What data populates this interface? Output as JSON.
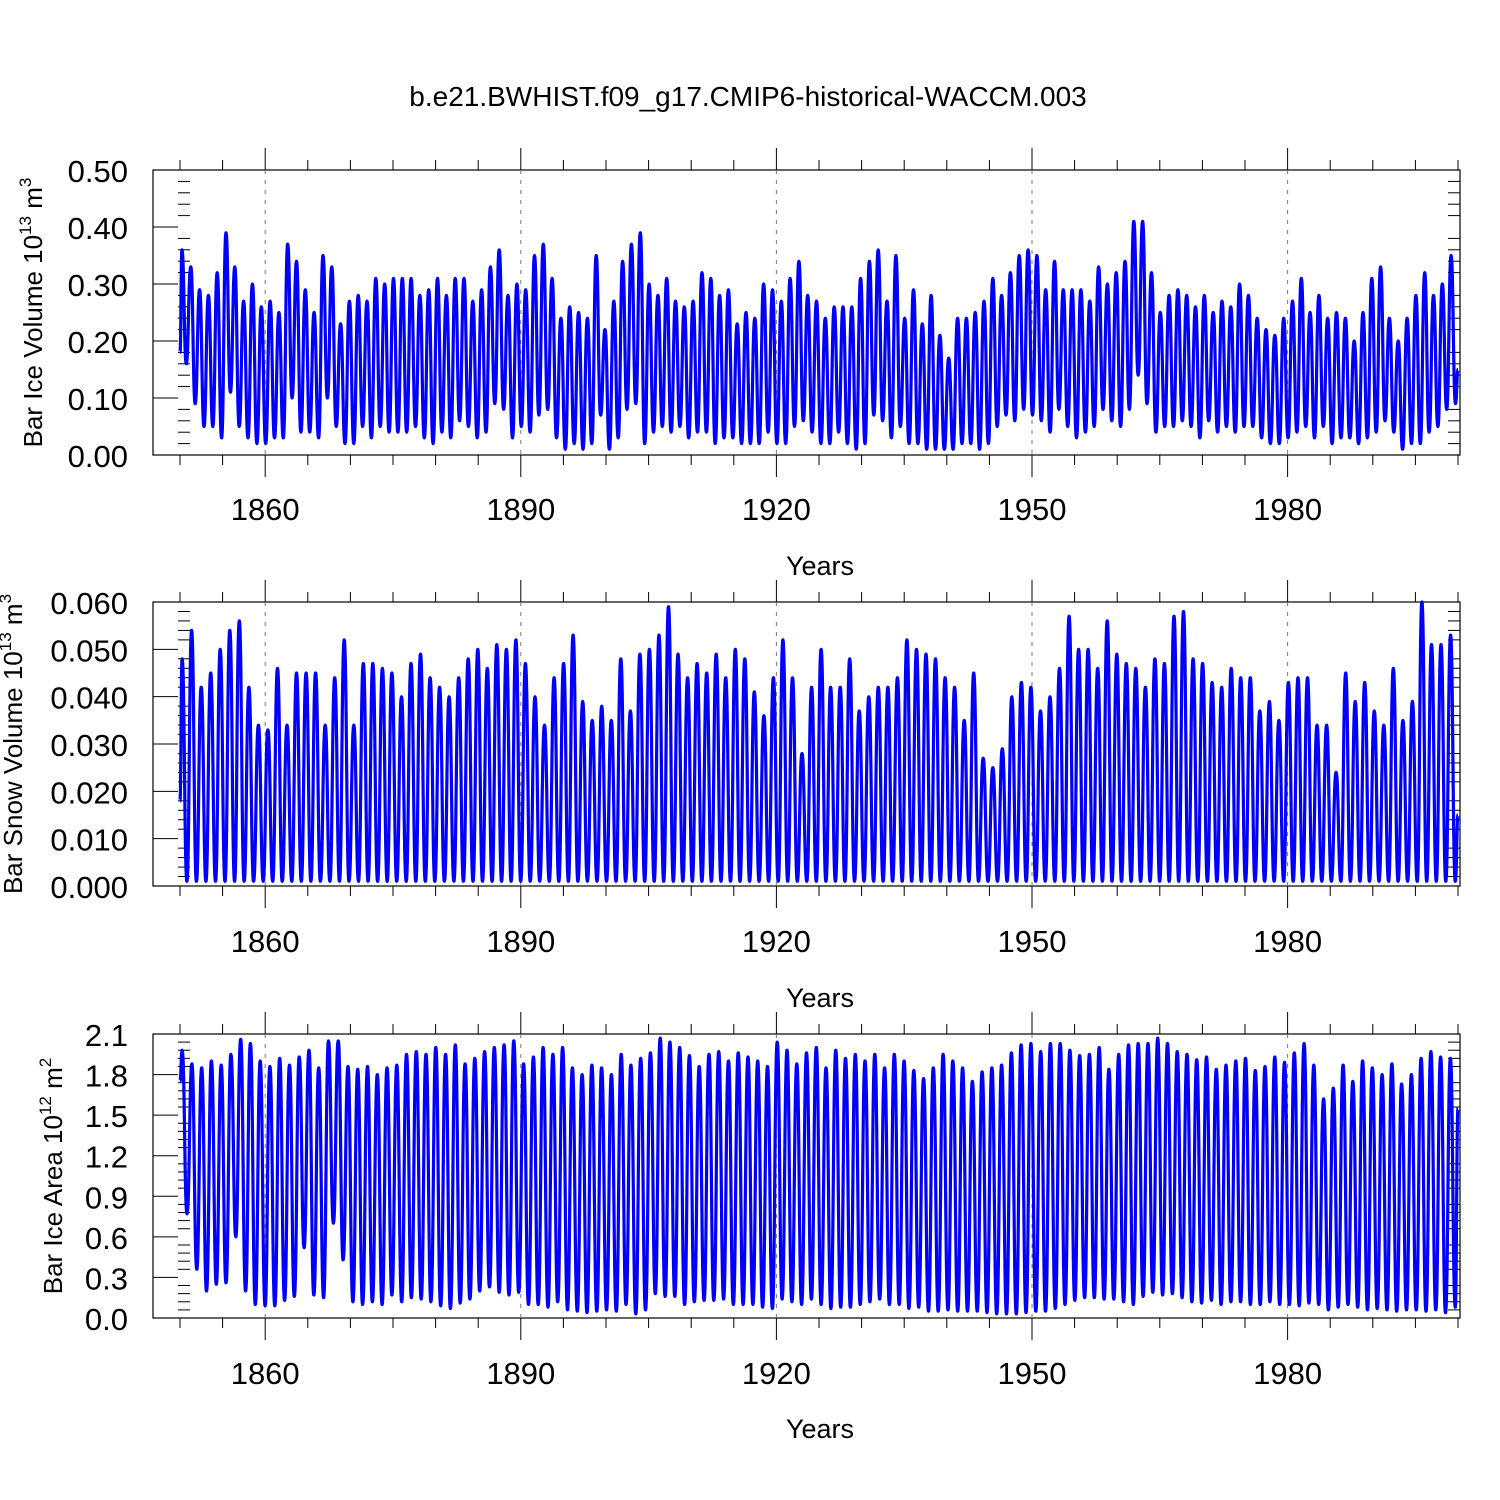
{
  "title": "b.e21.BWHIST.f09_g17.CMIP6-historical-WACCM.003",
  "line_color": "#0000ff",
  "chart_data": [
    {
      "type": "line",
      "ylabel_main": "Bar Ice Volume 10",
      "ylabel_exp": "13",
      "ylabel_unit": " m",
      "ylabel_unit_exp": "3",
      "xlabel": "Years",
      "xlim": [
        1850,
        2000
      ],
      "ylim": [
        0,
        0.5
      ],
      "xticks": [
        1860,
        1890,
        1920,
        1950,
        1980
      ],
      "yticks": [
        0.0,
        0.1,
        0.2,
        0.3,
        0.4,
        0.5
      ],
      "ytick_labels": [
        "0.00",
        "0.10",
        "0.20",
        "0.30",
        "0.40",
        "0.50"
      ],
      "grid": "vertical dashed at major x ticks",
      "series": [
        {
          "peaks": [
            0.36,
            0.33,
            0.29,
            0.28,
            0.32,
            0.39,
            0.33,
            0.27,
            0.3,
            0.26,
            0.27,
            0.25,
            0.37,
            0.34,
            0.29,
            0.25,
            0.35,
            0.33,
            0.23,
            0.27,
            0.28,
            0.27,
            0.31,
            0.3,
            0.31,
            0.31,
            0.31,
            0.28,
            0.29,
            0.31,
            0.28,
            0.31,
            0.31,
            0.27,
            0.29,
            0.33,
            0.36,
            0.28,
            0.3,
            0.29,
            0.35,
            0.37,
            0.31,
            0.24,
            0.26,
            0.25,
            0.24,
            0.35,
            0.22,
            0.27,
            0.34,
            0.37,
            0.39,
            0.3,
            0.28,
            0.31,
            0.27,
            0.26,
            0.27,
            0.32,
            0.31,
            0.28,
            0.29,
            0.23,
            0.25,
            0.24,
            0.3,
            0.29,
            0.27,
            0.31,
            0.34,
            0.28,
            0.27,
            0.24,
            0.26,
            0.26,
            0.26,
            0.31,
            0.34,
            0.36,
            0.27,
            0.35,
            0.24,
            0.29,
            0.23,
            0.28,
            0.21,
            0.17,
            0.24,
            0.24,
            0.25,
            0.27,
            0.31,
            0.28,
            0.32,
            0.35,
            0.36,
            0.35,
            0.29,
            0.34,
            0.29,
            0.29,
            0.29,
            0.27,
            0.33,
            0.3,
            0.32,
            0.34,
            0.41,
            0.41,
            0.32,
            0.25,
            0.28,
            0.29,
            0.28,
            0.26,
            0.28,
            0.25,
            0.27,
            0.26,
            0.3,
            0.28,
            0.24,
            0.22,
            0.21,
            0.24,
            0.27,
            0.31,
            0.25,
            0.28,
            0.24,
            0.25,
            0.24,
            0.2,
            0.25,
            0.31,
            0.33,
            0.24,
            0.2,
            0.24,
            0.28,
            0.32,
            0.28,
            0.3,
            0.35
          ],
          "troughs": [
            0.16,
            0.09,
            0.05,
            0.05,
            0.03,
            0.11,
            0.05,
            0.03,
            0.02,
            0.02,
            0.03,
            0.03,
            0.1,
            0.04,
            0.04,
            0.03,
            0.1,
            0.05,
            0.02,
            0.02,
            0.05,
            0.03,
            0.05,
            0.04,
            0.04,
            0.04,
            0.05,
            0.03,
            0.02,
            0.04,
            0.03,
            0.06,
            0.05,
            0.03,
            0.04,
            0.09,
            0.08,
            0.03,
            0.05,
            0.04,
            0.07,
            0.08,
            0.03,
            0.01,
            0.02,
            0.01,
            0.02,
            0.07,
            0.01,
            0.03,
            0.08,
            0.09,
            0.02,
            0.04,
            0.05,
            0.04,
            0.05,
            0.03,
            0.04,
            0.04,
            0.02,
            0.03,
            0.03,
            0.02,
            0.02,
            0.02,
            0.04,
            0.02,
            0.02,
            0.05,
            0.06,
            0.04,
            0.02,
            0.02,
            0.04,
            0.02,
            0.01,
            0.02,
            0.07,
            0.06,
            0.03,
            0.05,
            0.02,
            0.02,
            0.01,
            0.01,
            0.01,
            0.01,
            0.02,
            0.02,
            0.01,
            0.02,
            0.05,
            0.07,
            0.06,
            0.08,
            0.07,
            0.06,
            0.04,
            0.08,
            0.05,
            0.03,
            0.04,
            0.05,
            0.08,
            0.06,
            0.05,
            0.08,
            0.14,
            0.09,
            0.04,
            0.05,
            0.05,
            0.06,
            0.05,
            0.03,
            0.06,
            0.04,
            0.05,
            0.04,
            0.05,
            0.05,
            0.03,
            0.02,
            0.02,
            0.03,
            0.04,
            0.05,
            0.03,
            0.05,
            0.02,
            0.03,
            0.03,
            0.02,
            0.03,
            0.04,
            0.06,
            0.04,
            0.01,
            0.02,
            0.02,
            0.04,
            0.05,
            0.08,
            0.09
          ],
          "start": 0.18,
          "end": 0.15
        }
      ]
    },
    {
      "type": "line",
      "ylabel_main": "Bar Snow Volume 10",
      "ylabel_exp": "13",
      "ylabel_unit": " m",
      "ylabel_unit_exp": "3",
      "xlabel": "Years",
      "xlim": [
        1850,
        2000
      ],
      "ylim": [
        0,
        0.06
      ],
      "xticks": [
        1860,
        1890,
        1920,
        1950,
        1980
      ],
      "yticks": [
        0.0,
        0.01,
        0.02,
        0.03,
        0.04,
        0.05,
        0.06
      ],
      "ytick_labels": [
        "0.000",
        "0.010",
        "0.020",
        "0.030",
        "0.040",
        "0.050",
        "0.060"
      ],
      "grid": "vertical dashed at major x ticks",
      "series": [
        {
          "peaks": [
            0.048,
            0.054,
            0.042,
            0.045,
            0.05,
            0.054,
            0.056,
            0.042,
            0.034,
            0.033,
            0.046,
            0.034,
            0.045,
            0.045,
            0.045,
            0.034,
            0.044,
            0.052,
            0.034,
            0.047,
            0.047,
            0.046,
            0.045,
            0.04,
            0.047,
            0.049,
            0.044,
            0.042,
            0.04,
            0.044,
            0.048,
            0.05,
            0.046,
            0.051,
            0.05,
            0.052,
            0.047,
            0.04,
            0.034,
            0.044,
            0.047,
            0.053,
            0.039,
            0.035,
            0.038,
            0.035,
            0.048,
            0.037,
            0.049,
            0.05,
            0.053,
            0.059,
            0.049,
            0.044,
            0.047,
            0.045,
            0.049,
            0.044,
            0.05,
            0.048,
            0.041,
            0.036,
            0.044,
            0.052,
            0.044,
            0.028,
            0.042,
            0.05,
            0.042,
            0.042,
            0.048,
            0.037,
            0.04,
            0.042,
            0.042,
            0.044,
            0.052,
            0.05,
            0.049,
            0.048,
            0.044,
            0.042,
            0.035,
            0.045,
            0.027,
            0.025,
            0.029,
            0.04,
            0.043,
            0.042,
            0.037,
            0.04,
            0.046,
            0.057,
            0.05,
            0.05,
            0.046,
            0.056,
            0.049,
            0.047,
            0.046,
            0.042,
            0.048,
            0.047,
            0.057,
            0.058,
            0.048,
            0.047,
            0.043,
            0.042,
            0.046,
            0.044,
            0.044,
            0.037,
            0.039,
            0.035,
            0.043,
            0.044,
            0.044,
            0.034,
            0.034,
            0.024,
            0.045,
            0.039,
            0.043,
            0.037,
            0.034,
            0.046,
            0.035,
            0.039,
            0.06,
            0.051,
            0.051,
            0.053
          ],
          "troughs": [
            0.001
          ],
          "start": 0.018,
          "end": 0.015
        }
      ]
    },
    {
      "type": "line",
      "ylabel_main": "Bar Ice Area 10",
      "ylabel_exp": "12",
      "ylabel_unit": " m",
      "ylabel_unit_exp": "2",
      "xlabel": "Years",
      "xlim": [
        1850,
        2000
      ],
      "ylim": [
        0,
        2.1
      ],
      "xticks": [
        1860,
        1890,
        1920,
        1950,
        1980
      ],
      "yticks": [
        0.0,
        0.3,
        0.6,
        0.9,
        1.2,
        1.5,
        1.8,
        2.1
      ],
      "ytick_labels": [
        "0.0",
        "0.3",
        "0.6",
        "0.9",
        "1.2",
        "1.5",
        "1.8",
        "2.1"
      ],
      "grid": "vertical dashed at major x ticks",
      "series": [
        {
          "peaks": [
            1.98,
            1.88,
            1.85,
            1.9,
            1.87,
            1.95,
            2.06,
            2.03,
            1.9,
            1.86,
            1.92,
            1.87,
            1.93,
            1.98,
            1.85,
            2.05,
            2.05,
            1.86,
            1.84,
            1.86,
            1.8,
            1.85,
            1.87,
            1.95,
            1.97,
            1.95,
            2.0,
            1.95,
            2.02,
            1.88,
            1.92,
            1.97,
            2.0,
            2.02,
            2.05,
            1.88,
            1.93,
            2.0,
            1.95,
            2.0,
            1.85,
            1.8,
            1.87,
            1.85,
            1.8,
            1.95,
            1.87,
            1.92,
            1.96,
            2.07,
            2.04,
            2.0,
            1.94,
            1.86,
            1.95,
            1.97,
            1.9,
            1.96,
            1.93,
            1.9,
            1.86,
            2.04,
            1.98,
            1.88,
            1.96,
            2.0,
            1.85,
            1.98,
            1.92,
            1.95,
            1.9,
            1.95,
            1.85,
            1.95,
            1.9,
            1.83,
            1.77,
            1.85,
            1.95,
            1.9,
            1.85,
            1.75,
            1.82,
            1.85,
            1.87,
            1.96,
            2.02,
            2.03,
            1.97,
            2.03,
            2.03,
            1.98,
            1.94,
            1.95,
            2.0,
            1.84,
            1.95,
            2.02,
            2.03,
            2.03,
            2.07,
            2.03,
            1.97,
            1.95,
            1.91,
            1.93,
            1.84,
            1.87,
            1.9,
            1.92,
            1.83,
            1.86,
            1.93,
            1.89,
            1.96,
            2.03,
            1.87,
            1.62,
            1.7,
            1.87,
            1.75,
            1.9,
            1.85,
            1.8,
            1.88,
            1.73,
            1.8,
            1.92,
            1.97,
            1.93,
            1.92
          ],
          "troughs": [
            0.77,
            0.36,
            0.2,
            0.25,
            0.26,
            0.6,
            0.2,
            0.1,
            0.09,
            0.09,
            0.13,
            0.16,
            0.52,
            0.17,
            0.15,
            0.7,
            0.43,
            0.12,
            0.1,
            0.12,
            0.1,
            0.17,
            0.12,
            0.15,
            0.14,
            0.12,
            0.09,
            0.07,
            0.11,
            0.14,
            0.2,
            0.23,
            0.19,
            0.17,
            0.19,
            0.1,
            0.1,
            0.08,
            0.12,
            0.06,
            0.05,
            0.04,
            0.05,
            0.06,
            0.05,
            0.1,
            0.03,
            0.06,
            0.18,
            0.16,
            0.16,
            0.1,
            0.12,
            0.13,
            0.13,
            0.14,
            0.1,
            0.1,
            0.1,
            0.08,
            0.07,
            0.14,
            0.12,
            0.1,
            0.14,
            0.1,
            0.07,
            0.08,
            0.08,
            0.1,
            0.12,
            0.14,
            0.1,
            0.1,
            0.07,
            0.08,
            0.05,
            0.05,
            0.06,
            0.05,
            0.05,
            0.05,
            0.04,
            0.03,
            0.03,
            0.03,
            0.04,
            0.05,
            0.05,
            0.07,
            0.1,
            0.13,
            0.15,
            0.15,
            0.14,
            0.14,
            0.12,
            0.1,
            0.16,
            0.19,
            0.17,
            0.18,
            0.15,
            0.12,
            0.11,
            0.13,
            0.1,
            0.12,
            0.12,
            0.1,
            0.1,
            0.12,
            0.1,
            0.1,
            0.09,
            0.11,
            0.1,
            0.06,
            0.08,
            0.1,
            0.08,
            0.06,
            0.07,
            0.06,
            0.05,
            0.06,
            0.06,
            0.05,
            0.06,
            0.04,
            0.08,
            0.12,
            0.25,
            0.3,
            0.43
          ],
          "start": 1.75,
          "end": 1.55
        }
      ]
    }
  ]
}
